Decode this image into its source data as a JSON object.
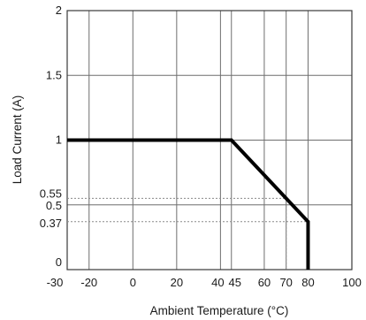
{
  "chart_data": {
    "type": "line",
    "title": "",
    "xlabel": "Ambient Temperature (°C)",
    "ylabel": "Load Current (A)",
    "xlim": [
      -30,
      100
    ],
    "ylim": [
      0,
      2
    ],
    "x_ticks": [
      {
        "value": -30,
        "label": "-30"
      },
      {
        "value": -20,
        "label": "-20"
      },
      {
        "value": 0,
        "label": "0"
      },
      {
        "value": 20,
        "label": "20"
      },
      {
        "value": 40,
        "label": "40"
      },
      {
        "value": 45,
        "label": "45"
      },
      {
        "value": 60,
        "label": "60"
      },
      {
        "value": 70,
        "label": "70"
      },
      {
        "value": 80,
        "label": "80"
      },
      {
        "value": 100,
        "label": "100"
      }
    ],
    "y_ticks": [
      {
        "value": 0,
        "label": "0"
      },
      {
        "value": 0.37,
        "label": "0.37"
      },
      {
        "value": 0.5,
        "label": "0.5"
      },
      {
        "value": 0.55,
        "label": "0.55"
      },
      {
        "value": 1,
        "label": "1"
      },
      {
        "value": 1.5,
        "label": "1.5"
      },
      {
        "value": 2,
        "label": "2"
      }
    ],
    "grid": true,
    "series": [
      {
        "x": [
          -30,
          45,
          80,
          80
        ],
        "y": [
          1,
          1,
          0.37,
          0
        ]
      }
    ],
    "reference_lines": [
      {
        "style": "dotted",
        "x": [
          -30,
          70,
          70
        ],
        "y": [
          0.55,
          0.55,
          0
        ]
      },
      {
        "style": "dotted",
        "x": [
          -30,
          80
        ],
        "y": [
          0.37,
          0.37
        ]
      }
    ],
    "colors": {
      "series": "#000000",
      "grid": "#6e6e6e",
      "reference": "#8a8a8a"
    }
  }
}
